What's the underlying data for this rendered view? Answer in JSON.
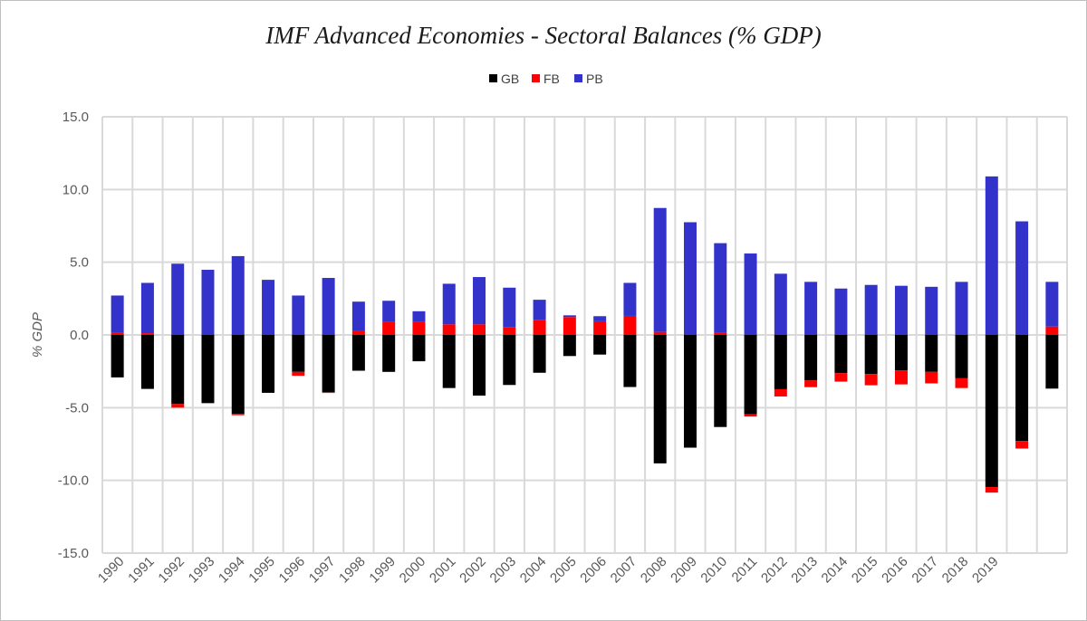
{
  "chart_data": {
    "type": "bar",
    "stacked": true,
    "title": "IMF Advanced Economies - Sectoral Balances (% GDP)",
    "xlabel": "",
    "ylabel": "% GDP",
    "ylim": [
      -15,
      15
    ],
    "yticks": [
      15,
      10,
      5,
      0,
      -5,
      -10,
      -15
    ],
    "ytick_labels": [
      "15.0",
      "10.0",
      "5.0",
      "0.0",
      "-5.0",
      "-10.0",
      "-15.0"
    ],
    "grid": true,
    "legend_position": "top",
    "categories": [
      "1990",
      "1991",
      "1992",
      "1993",
      "1994",
      "1995",
      "1996",
      "1997",
      "1998",
      "1999",
      "2000",
      "2001",
      "2002",
      "2003",
      "2004",
      "2005",
      "2006",
      "2007",
      "2008",
      "2009",
      "2010",
      "2011",
      "2012",
      "2013",
      "2014",
      "2015",
      "2016",
      "2017",
      "2018",
      "2019",
      "",
      ""
    ],
    "series": [
      {
        "name": "GB",
        "color": "#000000",
        "values": [
          -2.92,
          -3.71,
          -4.75,
          -4.69,
          -5.42,
          -3.98,
          -2.54,
          -3.94,
          -2.46,
          -2.54,
          -1.81,
          -3.65,
          -4.17,
          -3.44,
          -2.6,
          -1.45,
          -1.35,
          -3.58,
          -8.83,
          -7.75,
          -6.33,
          -5.46,
          -3.73,
          -3.13,
          -2.63,
          -2.69,
          -2.44,
          -2.54,
          -2.98,
          -10.46,
          -7.29,
          -3.69
        ]
      },
      {
        "name": "FB",
        "color": "#ff0000",
        "values": [
          0.15,
          0.12,
          -0.25,
          0,
          -0.1,
          0,
          -0.27,
          -0.05,
          0.31,
          0.88,
          0.88,
          0.73,
          0.73,
          0.54,
          1.04,
          1.23,
          0.94,
          1.31,
          0.21,
          0,
          0.15,
          -0.15,
          -0.5,
          -0.46,
          -0.58,
          -0.77,
          -0.96,
          -0.79,
          -0.67,
          -0.38,
          -0.52,
          0.58
        ]
      },
      {
        "name": "PB",
        "color": "#3333cc",
        "values": [
          2.56,
          3.46,
          4.9,
          4.48,
          5.42,
          3.79,
          2.71,
          3.92,
          1.98,
          1.47,
          0.75,
          2.79,
          3.25,
          2.71,
          1.38,
          0.12,
          0.35,
          2.27,
          8.52,
          7.75,
          6.16,
          5.6,
          4.21,
          3.65,
          3.19,
          3.44,
          3.38,
          3.31,
          3.65,
          10.9,
          7.81,
          3.07
        ]
      }
    ]
  }
}
